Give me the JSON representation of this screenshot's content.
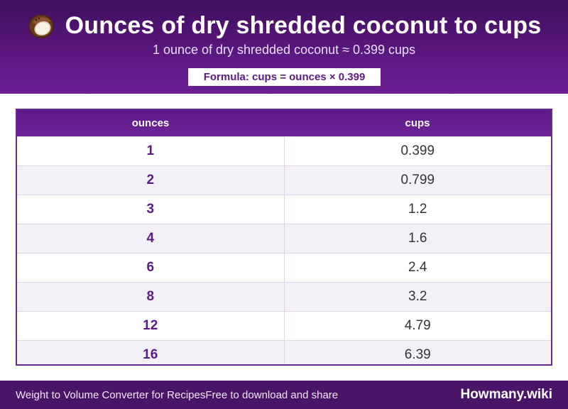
{
  "header": {
    "icon": "coconut-icon",
    "title": "Ounces of dry shredded coconut to cups",
    "subtitle": "1 ounce of dry shredded coconut ≈ 0.399 cups",
    "formula": "Formula: cups = ounces × 0.399"
  },
  "table": {
    "columns": [
      "ounces",
      "cups"
    ],
    "rows": [
      [
        "1",
        "0.399"
      ],
      [
        "2",
        "0.799"
      ],
      [
        "3",
        "1.2"
      ],
      [
        "4",
        "1.6"
      ],
      [
        "6",
        "2.4"
      ],
      [
        "8",
        "3.2"
      ],
      [
        "12",
        "4.79"
      ],
      [
        "16",
        "6.39"
      ]
    ]
  },
  "footer": {
    "left_text": "Weight to Volume Converter for Recipes",
    "share_text": "Free to download and share",
    "brand": "Howmany.wiki"
  },
  "colors": {
    "header_purple": "#5a1780",
    "accent_purple": "#5b1a84",
    "footer_purple": "#4a1468"
  }
}
